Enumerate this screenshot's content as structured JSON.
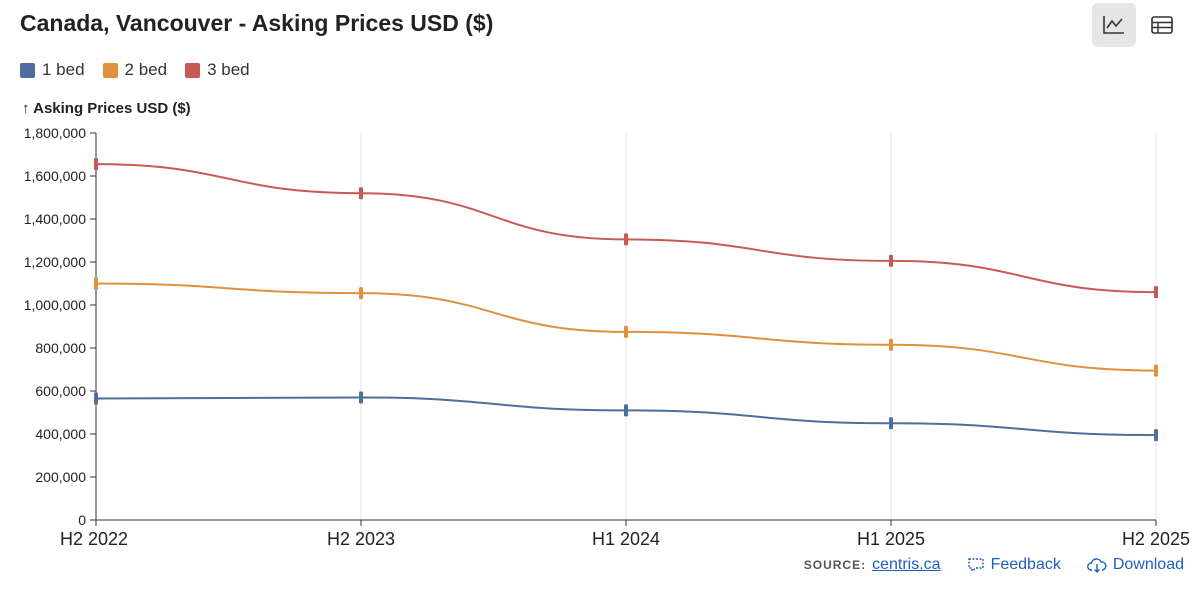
{
  "header": {
    "title": "Canada, Vancouver - Asking Prices USD ($)",
    "chart_view_icon": "line-chart-icon",
    "table_view_icon": "table-icon"
  },
  "chart_data": {
    "type": "line",
    "title": "Canada, Vancouver - Asking Prices USD ($)",
    "ylabel": "↑ Asking Prices USD ($)",
    "xlabel": "",
    "categories": [
      "H2 2022",
      "H2 2023",
      "H1 2024",
      "H1 2025",
      "H2 2025"
    ],
    "ylim": [
      0,
      1800000
    ],
    "yticks": [
      0,
      200000,
      400000,
      600000,
      800000,
      1000000,
      1200000,
      1400000,
      1600000,
      1800000
    ],
    "ytick_labels": [
      "0",
      "200,000",
      "400,000",
      "600,000",
      "800,000",
      "1,000,000",
      "1,200,000",
      "1,400,000",
      "1,600,000",
      "1,800,000"
    ],
    "grid": "vertical",
    "legend": "top-left",
    "series": [
      {
        "name": "1 bed",
        "color": "#4e6f9e",
        "values": [
          565000,
          570000,
          510000,
          450000,
          395000
        ]
      },
      {
        "name": "2 bed",
        "color": "#e0913e",
        "values": [
          1100000,
          1055000,
          875000,
          815000,
          695000
        ]
      },
      {
        "name": "3 bed",
        "color": "#c85a55",
        "values": [
          1655000,
          1520000,
          1305000,
          1205000,
          1060000
        ]
      }
    ]
  },
  "footer": {
    "source_label": "SOURCE:",
    "source_link": "centris.ca",
    "feedback_label": "Feedback",
    "download_label": "Download"
  }
}
